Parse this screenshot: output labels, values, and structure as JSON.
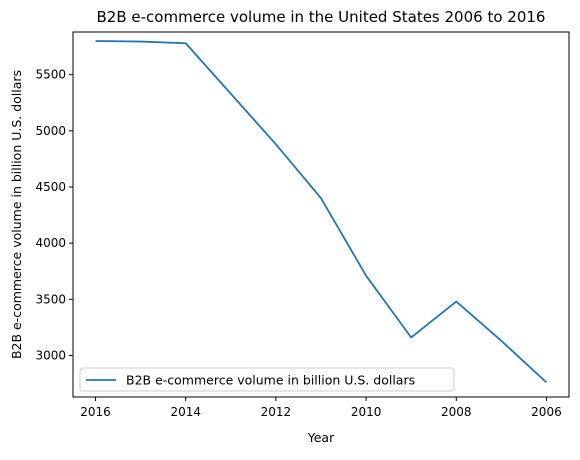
{
  "chart_data": {
    "type": "line",
    "title": "B2B e-commerce volume in the United States 2006 to 2016",
    "xlabel": "Year",
    "ylabel": "B2B e-commerce volume in billion U.S. dollars",
    "x_inverted": true,
    "xlim": [
      2016.5,
      2005.5
    ],
    "ylim": [
      2630,
      5880
    ],
    "x_ticks": [
      2016,
      2014,
      2012,
      2010,
      2008,
      2006
    ],
    "x_tick_labels": [
      "2016",
      "2014",
      "2012",
      "2010",
      "2008",
      "2006"
    ],
    "y_ticks": [
      3000,
      3500,
      4000,
      4500,
      5000,
      5500
    ],
    "y_tick_labels": [
      "3000",
      "3500",
      "4000",
      "4500",
      "5000",
      "5500"
    ],
    "grid": false,
    "legend_position": "lower-left",
    "series": [
      {
        "name": "B2B e-commerce volume in billion U.S. dollars",
        "color": "#1f77b4",
        "x": [
          2016,
          2015,
          2014,
          2013,
          2012,
          2011,
          2010,
          2009,
          2008,
          2007,
          2006
        ],
        "y": [
          5800,
          5795,
          5780,
          5330,
          4880,
          4400,
          3710,
          3160,
          3480,
          3130,
          2760
        ]
      }
    ]
  }
}
